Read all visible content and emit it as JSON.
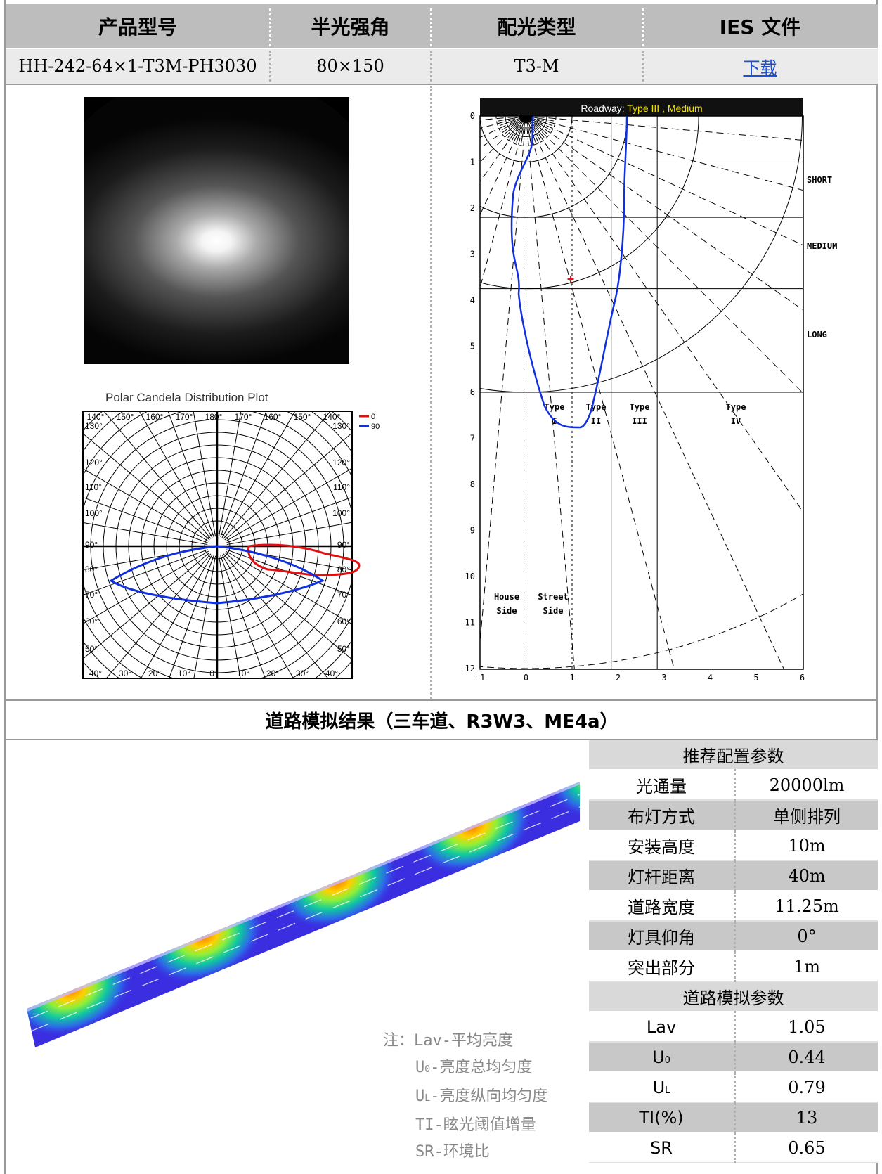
{
  "header": {
    "model_label": "产品型号",
    "beam_label": "半光强角",
    "dist_label": "配光类型",
    "ies_label": "IES 文件"
  },
  "product": {
    "model": "HH-242-64×1-T3M-PH3030",
    "beam_angle": "80×150",
    "dist_type": "T3-M",
    "ies_link": "下载"
  },
  "polar_plot": {
    "title": "Polar Candela Distribution Plot",
    "legend": [
      "0",
      "90"
    ],
    "angle_labels_top": [
      "140°",
      "150°",
      "160°",
      "170°",
      "180°",
      "170°",
      "160°",
      "150°",
      "140°"
    ],
    "angle_labels_left": [
      "130°",
      "120°",
      "110°",
      "100°",
      "90°",
      "80°",
      "70°",
      "60°",
      "50°"
    ],
    "angle_labels_bottom": [
      "40°",
      "30°",
      "20°",
      "10°",
      "0°",
      "10°",
      "20°",
      "30°",
      "40°"
    ],
    "colors": {
      "c0": "#e01010",
      "c90": "#1030e0"
    }
  },
  "roadway_plot": {
    "title_prefix": "Roadway: ",
    "title_type": "Type III , Medium",
    "y_ticks": [
      "0",
      "1",
      "2",
      "3",
      "4",
      "5",
      "6",
      "7",
      "8",
      "9",
      "10",
      "11",
      "12"
    ],
    "x_ticks": [
      "-1",
      "0",
      "1",
      "2",
      "3",
      "4",
      "5",
      "6"
    ],
    "zones": [
      "SHORT",
      "MEDIUM",
      "LONG"
    ],
    "types": [
      "Type I",
      "Type II",
      "Type III",
      "Type IV"
    ],
    "sides": [
      "House Side",
      "Street Side"
    ]
  },
  "section_title": "道路模拟结果（三车道、R3W3、ME4a）",
  "recommended": {
    "title": "推荐配置参数",
    "rows": [
      {
        "k": "光通量",
        "v": "20000lm"
      },
      {
        "k": "布灯方式",
        "v": "单侧排列"
      },
      {
        "k": "安装高度",
        "v": "10m"
      },
      {
        "k": "灯杆距离",
        "v": "40m"
      },
      {
        "k": "道路宽度",
        "v": "11.25m"
      },
      {
        "k": "灯具仰角",
        "v": "0°"
      },
      {
        "k": "突出部分",
        "v": "1m"
      }
    ]
  },
  "simulation": {
    "title": "道路模拟参数",
    "rows": [
      {
        "k": "Lav",
        "v": "1.05"
      },
      {
        "k": "U",
        "sub": "0",
        "v": "0.44"
      },
      {
        "k": "U",
        "sub": "L",
        "v": "0.79"
      },
      {
        "k": "TI(%)",
        "v": "13"
      },
      {
        "k": "SR",
        "v": "0.65"
      }
    ]
  },
  "notes": {
    "prefix": "注：",
    "items": [
      {
        "abbr": "Lav",
        "text": "-平均亮度"
      },
      {
        "abbr": "U",
        "sub": "0",
        "text": "-亮度总均匀度"
      },
      {
        "abbr": "U",
        "sub": "L",
        "text": "-亮度纵向均匀度"
      },
      {
        "abbr": "TI",
        "text": "-眩光阈值增量"
      },
      {
        "abbr": "SR",
        "text": "-环境比"
      }
    ]
  }
}
